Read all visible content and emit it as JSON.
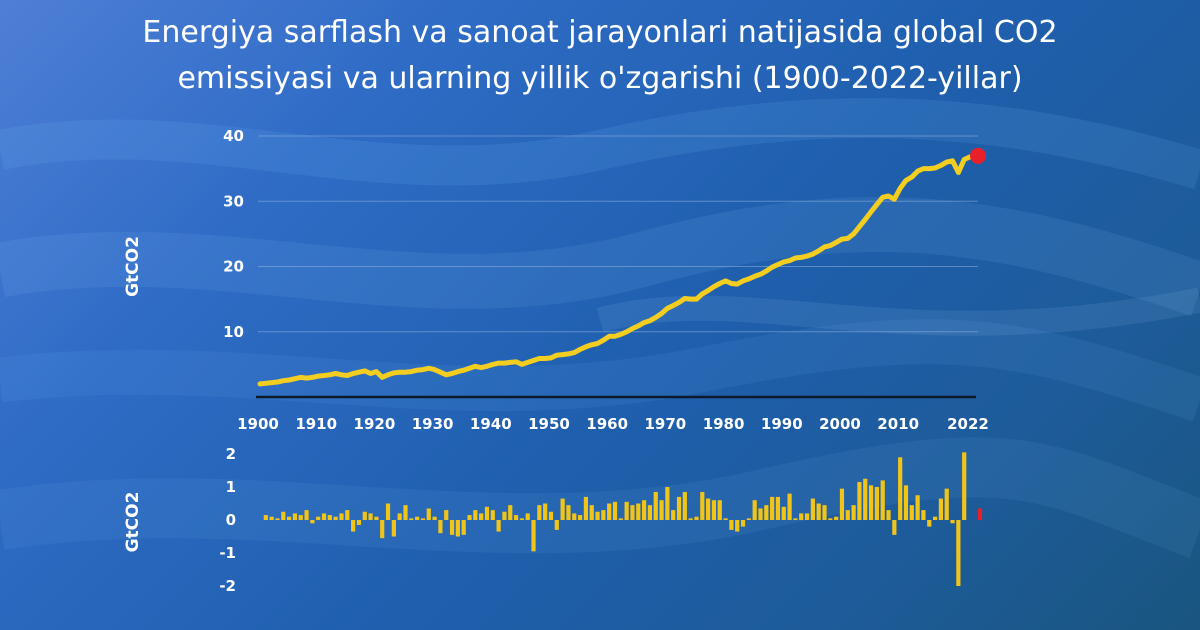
{
  "header": {
    "title_line1": "Energiya sarflash va sanoat jarayonlari natijasida global CO2",
    "title_line2": "emissiyasi va ularning yillik o'zgarishi (1900-2022-yillar)"
  },
  "colors": {
    "line": "#f3cd1f",
    "bar": "#f0c419",
    "highlight": "#e8202a",
    "grid": "#9cb8e0",
    "axis": "#0d1a2c",
    "text": "#ffffff"
  },
  "chart_data": [
    {
      "type": "line",
      "ylabel": "GtCO2",
      "xlim": [
        1900,
        2022
      ],
      "ylim": [
        0,
        40
      ],
      "x_ticks": [
        "1900",
        "1910",
        "1920",
        "1930",
        "1940",
        "1950",
        "1960",
        "1970",
        "1980",
        "1990",
        "2000",
        "2010",
        "2022"
      ],
      "y_ticks": [
        "10",
        "20",
        "30",
        "40"
      ],
      "grid": true,
      "x": [
        1900,
        1901,
        1902,
        1903,
        1904,
        1905,
        1906,
        1907,
        1908,
        1909,
        1910,
        1911,
        1912,
        1913,
        1914,
        1915,
        1916,
        1917,
        1918,
        1919,
        1920,
        1921,
        1922,
        1923,
        1924,
        1925,
        1926,
        1927,
        1928,
        1929,
        1930,
        1931,
        1932,
        1933,
        1934,
        1935,
        1936,
        1937,
        1938,
        1939,
        1940,
        1941,
        1942,
        1943,
        1944,
        1945,
        1946,
        1947,
        1948,
        1949,
        1950,
        1951,
        1952,
        1953,
        1954,
        1955,
        1956,
        1957,
        1958,
        1959,
        1960,
        1961,
        1962,
        1963,
        1964,
        1965,
        1966,
        1967,
        1968,
        1969,
        1970,
        1971,
        1972,
        1973,
        1974,
        1975,
        1976,
        1977,
        1978,
        1979,
        1980,
        1981,
        1982,
        1983,
        1984,
        1985,
        1986,
        1987,
        1988,
        1989,
        1990,
        1991,
        1992,
        1993,
        1994,
        1995,
        1996,
        1997,
        1998,
        1999,
        2000,
        2001,
        2002,
        2003,
        2004,
        2005,
        2006,
        2007,
        2008,
        2009,
        2010,
        2011,
        2012,
        2013,
        2014,
        2015,
        2016,
        2017,
        2018,
        2019,
        2020,
        2021,
        2022
      ],
      "values": [
        2.0,
        2.1,
        2.2,
        2.3,
        2.5,
        2.6,
        2.8,
        3.0,
        2.9,
        3.0,
        3.2,
        3.3,
        3.4,
        3.6,
        3.4,
        3.3,
        3.6,
        3.8,
        4.0,
        3.6,
        3.9,
        3.0,
        3.4,
        3.7,
        3.8,
        3.8,
        3.9,
        4.1,
        4.2,
        4.4,
        4.2,
        3.8,
        3.4,
        3.6,
        3.9,
        4.1,
        4.4,
        4.7,
        4.5,
        4.7,
        5.0,
        5.2,
        5.2,
        5.3,
        5.4,
        5.0,
        5.3,
        5.6,
        5.9,
        5.9,
        6.0,
        6.4,
        6.5,
        6.6,
        6.8,
        7.3,
        7.7,
        8.0,
        8.2,
        8.7,
        9.3,
        9.3,
        9.6,
        10.0,
        10.5,
        10.9,
        11.4,
        11.7,
        12.2,
        12.8,
        13.6,
        14.0,
        14.5,
        15.1,
        15.0,
        15.0,
        15.8,
        16.3,
        16.9,
        17.4,
        17.8,
        17.4,
        17.3,
        17.8,
        18.1,
        18.5,
        18.8,
        19.3,
        19.9,
        20.3,
        20.7,
        20.9,
        21.3,
        21.4,
        21.6,
        21.9,
        22.4,
        23.0,
        23.2,
        23.7,
        24.2,
        24.3,
        25.0,
        26.1,
        27.2,
        28.4,
        29.5,
        30.6,
        30.8,
        30.3,
        32.0,
        33.2,
        33.7,
        34.6,
        35.0,
        35.0,
        35.1,
        35.5,
        36.0,
        36.2,
        34.4,
        36.4,
        36.8
      ]
    },
    {
      "type": "bar",
      "ylabel": "GtCO2",
      "xlim": [
        1900,
        2022
      ],
      "ylim": [
        -2,
        2
      ],
      "y_ticks": [
        "2",
        "1",
        "0",
        "-1",
        "-2"
      ],
      "x": [
        1901,
        1902,
        1903,
        1904,
        1905,
        1906,
        1907,
        1908,
        1909,
        1910,
        1911,
        1912,
        1913,
        1914,
        1915,
        1916,
        1917,
        1918,
        1919,
        1920,
        1921,
        1922,
        1923,
        1924,
        1925,
        1926,
        1927,
        1928,
        1929,
        1930,
        1931,
        1932,
        1933,
        1934,
        1935,
        1936,
        1937,
        1938,
        1939,
        1940,
        1941,
        1942,
        1943,
        1944,
        1945,
        1946,
        1947,
        1948,
        1949,
        1950,
        1951,
        1952,
        1953,
        1954,
        1955,
        1956,
        1957,
        1958,
        1959,
        1960,
        1961,
        1962,
        1963,
        1964,
        1965,
        1966,
        1967,
        1968,
        1969,
        1970,
        1971,
        1972,
        1973,
        1974,
        1975,
        1976,
        1977,
        1978,
        1979,
        1980,
        1981,
        1982,
        1983,
        1984,
        1985,
        1986,
        1987,
        1988,
        1989,
        1990,
        1991,
        1992,
        1993,
        1994,
        1995,
        1996,
        1997,
        1998,
        1999,
        2000,
        2001,
        2002,
        2003,
        2004,
        2005,
        2006,
        2007,
        2008,
        2009,
        2010,
        2011,
        2012,
        2013,
        2014,
        2015,
        2016,
        2017,
        2018,
        2019,
        2020,
        2021,
        2022
      ],
      "values": [
        0.15,
        0.1,
        0.05,
        0.25,
        0.1,
        0.2,
        0.15,
        0.3,
        -0.1,
        0.1,
        0.2,
        0.15,
        0.1,
        0.2,
        0.3,
        -0.35,
        -0.15,
        0.25,
        0.2,
        0.1,
        -0.55,
        0.5,
        -0.5,
        0.2,
        0.45,
        0.05,
        0.1,
        0.05,
        0.35,
        0.1,
        -0.4,
        0.3,
        -0.45,
        -0.5,
        -0.45,
        0.15,
        0.3,
        0.2,
        0.4,
        0.3,
        -0.35,
        0.25,
        0.45,
        0.15,
        0.05,
        0.2,
        -0.95,
        0.45,
        0.5,
        0.25,
        -0.3,
        0.65,
        0.45,
        0.2,
        0.15,
        0.7,
        0.45,
        0.25,
        0.3,
        0.5,
        0.55,
        0.05,
        0.55,
        0.45,
        0.5,
        0.6,
        0.45,
        0.85,
        0.6,
        1.0,
        0.3,
        0.7,
        0.85,
        0.05,
        0.1,
        0.85,
        0.65,
        0.6,
        0.6,
        0.05,
        -0.3,
        -0.35,
        -0.2,
        0.05,
        0.6,
        0.35,
        0.45,
        0.7,
        0.7,
        0.4,
        0.8,
        0.05,
        0.2,
        0.2,
        0.65,
        0.5,
        0.45,
        0.05,
        0.1,
        0.95,
        0.3,
        0.45,
        1.15,
        1.25,
        1.05,
        1.0,
        1.2,
        0.3,
        -0.45,
        1.9,
        1.05,
        0.45,
        0.75,
        0.3,
        -0.2,
        0.1,
        0.65,
        0.95,
        -0.1,
        -2.0,
        2.05,
        0.35
      ]
    }
  ]
}
